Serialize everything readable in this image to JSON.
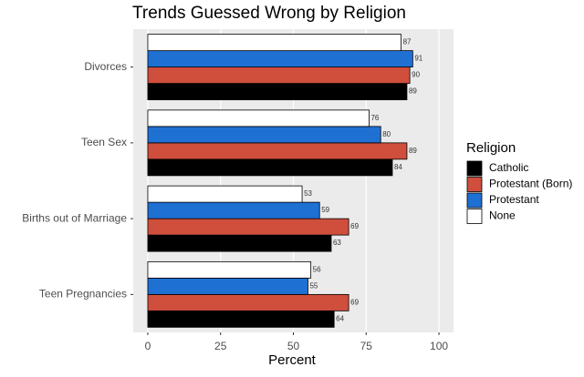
{
  "chart_data": {
    "type": "bar",
    "orientation": "horizontal",
    "title": "Trends Guessed Wrong by Religion",
    "xlabel": "Percent",
    "categories": [
      "Divorces",
      "Teen Sex",
      "Births out of Marriage",
      "Teen Pregnancies"
    ],
    "series": [
      {
        "name": "Catholic",
        "color": "#000000",
        "values": [
          89,
          84,
          63,
          64
        ]
      },
      {
        "name": "Protestant (Born)",
        "color": "#cf4e3c",
        "values": [
          90,
          89,
          69,
          69
        ]
      },
      {
        "name": "Protestant",
        "color": "#1f70d3",
        "values": [
          91,
          80,
          59,
          55
        ]
      },
      {
        "name": "None",
        "color": "#ffffff",
        "values": [
          87,
          76,
          53,
          56
        ]
      }
    ],
    "xlim": [
      -5,
      105
    ],
    "xticks": [
      0,
      25,
      50,
      75,
      100
    ],
    "grid": true,
    "legend_title": "Religion",
    "legend_position": "right"
  }
}
